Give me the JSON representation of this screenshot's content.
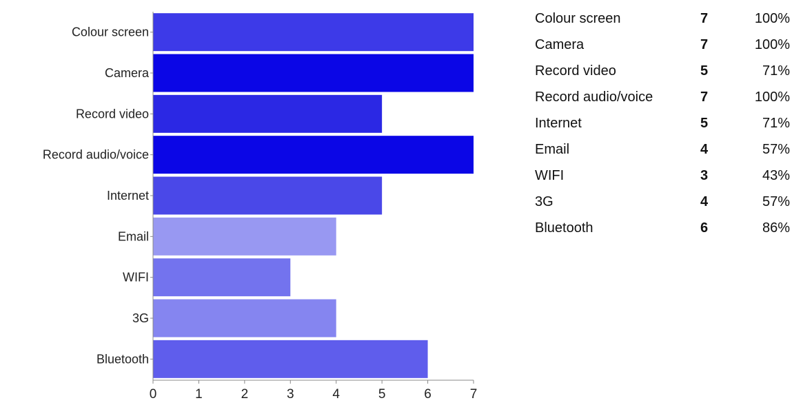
{
  "chart_data": {
    "type": "bar",
    "orientation": "horizontal",
    "categories": [
      "Colour screen",
      "Camera",
      "Record video",
      "Record audio/voice",
      "Internet",
      "Email",
      "WIFI",
      "3G",
      "Bluetooth"
    ],
    "values": [
      7,
      7,
      5,
      7,
      5,
      4,
      3,
      4,
      6
    ],
    "colors": [
      "#3d3ae8",
      "#0b06e6",
      "#2b28e4",
      "#0b06e6",
      "#4a48e8",
      "#9898f2",
      "#7373ee",
      "#8585f0",
      "#5f5dec"
    ],
    "xlim": [
      0,
      7
    ],
    "xticks": [
      "0",
      "1",
      "2",
      "3",
      "4",
      "5",
      "6",
      "7"
    ],
    "grid": false,
    "title": "",
    "xlabel": "",
    "ylabel": ""
  },
  "summary_table": [
    {
      "label": "Colour screen",
      "count": "7",
      "percent": "100%"
    },
    {
      "label": "Camera",
      "count": "7",
      "percent": "100%"
    },
    {
      "label": "Record video",
      "count": "5",
      "percent": "71%"
    },
    {
      "label": "Record audio/voice",
      "count": "7",
      "percent": "100%"
    },
    {
      "label": "Internet",
      "count": "5",
      "percent": "71%"
    },
    {
      "label": "Email",
      "count": "4",
      "percent": "57%"
    },
    {
      "label": "WIFI",
      "count": "3",
      "percent": "43%"
    },
    {
      "label": "3G",
      "count": "4",
      "percent": "57%"
    },
    {
      "label": "Bluetooth",
      "count": "6",
      "percent": "86%"
    }
  ]
}
